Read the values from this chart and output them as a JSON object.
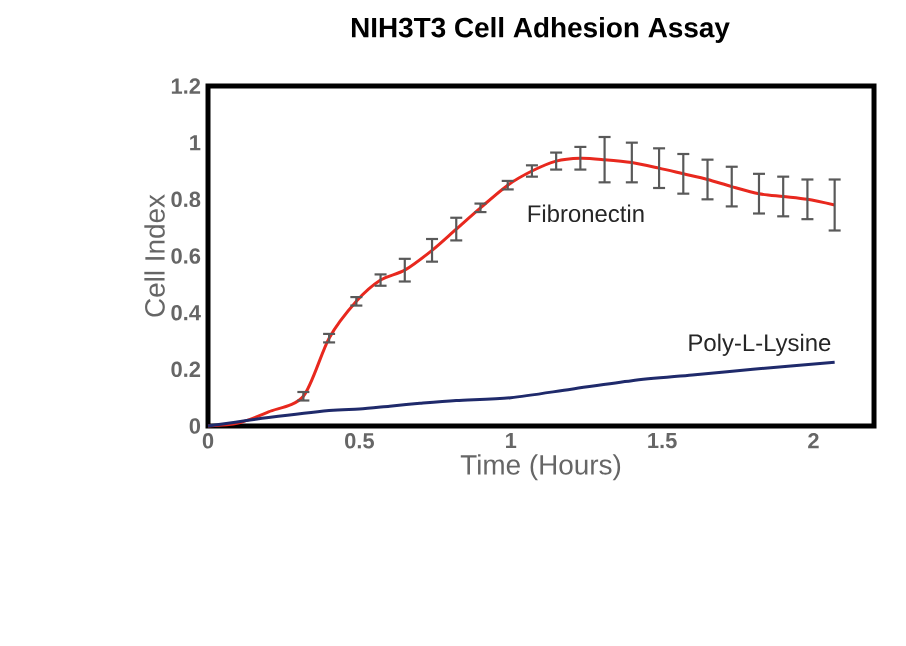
{
  "chart_data": {
    "type": "line",
    "title": "NIH3T3 Cell Adhesion Assay",
    "xlabel": "Time (Hours)",
    "ylabel": "Cell Index",
    "xlim": [
      0,
      2.2
    ],
    "ylim": [
      0,
      1.2
    ],
    "xticks": [
      0,
      0.5,
      1,
      1.5,
      2
    ],
    "yticks": [
      0,
      0.2,
      0.4,
      0.6,
      0.8,
      1,
      1.2
    ],
    "grid": false,
    "legend": false,
    "series": [
      {
        "name": "Fibronectin",
        "color": "#e8281e",
        "x": [
          0,
          0.1,
          0.2,
          0.315,
          0.4,
          0.49,
          0.57,
          0.65,
          0.74,
          0.82,
          0.9,
          0.99,
          1.07,
          1.15,
          1.23,
          1.31,
          1.4,
          1.49,
          1.57,
          1.65,
          1.73,
          1.82,
          1.9,
          1.98,
          2.07
        ],
        "values": [
          0,
          0.01,
          0.05,
          0.105,
          0.31,
          0.44,
          0.515,
          0.55,
          0.62,
          0.695,
          0.77,
          0.85,
          0.9,
          0.935,
          0.945,
          0.94,
          0.93,
          0.91,
          0.89,
          0.87,
          0.845,
          0.82,
          0.81,
          0.8,
          0.78
        ],
        "errors": [
          null,
          null,
          null,
          0.015,
          0.015,
          0.015,
          0.02,
          0.04,
          0.04,
          0.04,
          0.015,
          0.015,
          0.02,
          0.03,
          0.04,
          0.08,
          0.07,
          0.07,
          0.07,
          0.07,
          0.07,
          0.07,
          0.07,
          0.07,
          0.09
        ]
      },
      {
        "name": "Poly-L-Lysine",
        "color": "#1f2a6b",
        "x": [
          0,
          0.2,
          0.4,
          0.5,
          0.6,
          0.7,
          0.82,
          1.0,
          1.2,
          1.4,
          1.6,
          1.8,
          2.07
        ],
        "values": [
          0,
          0.03,
          0.055,
          0.06,
          0.07,
          0.08,
          0.09,
          0.1,
          0.13,
          0.16,
          0.18,
          0.2,
          0.225
        ]
      }
    ]
  }
}
